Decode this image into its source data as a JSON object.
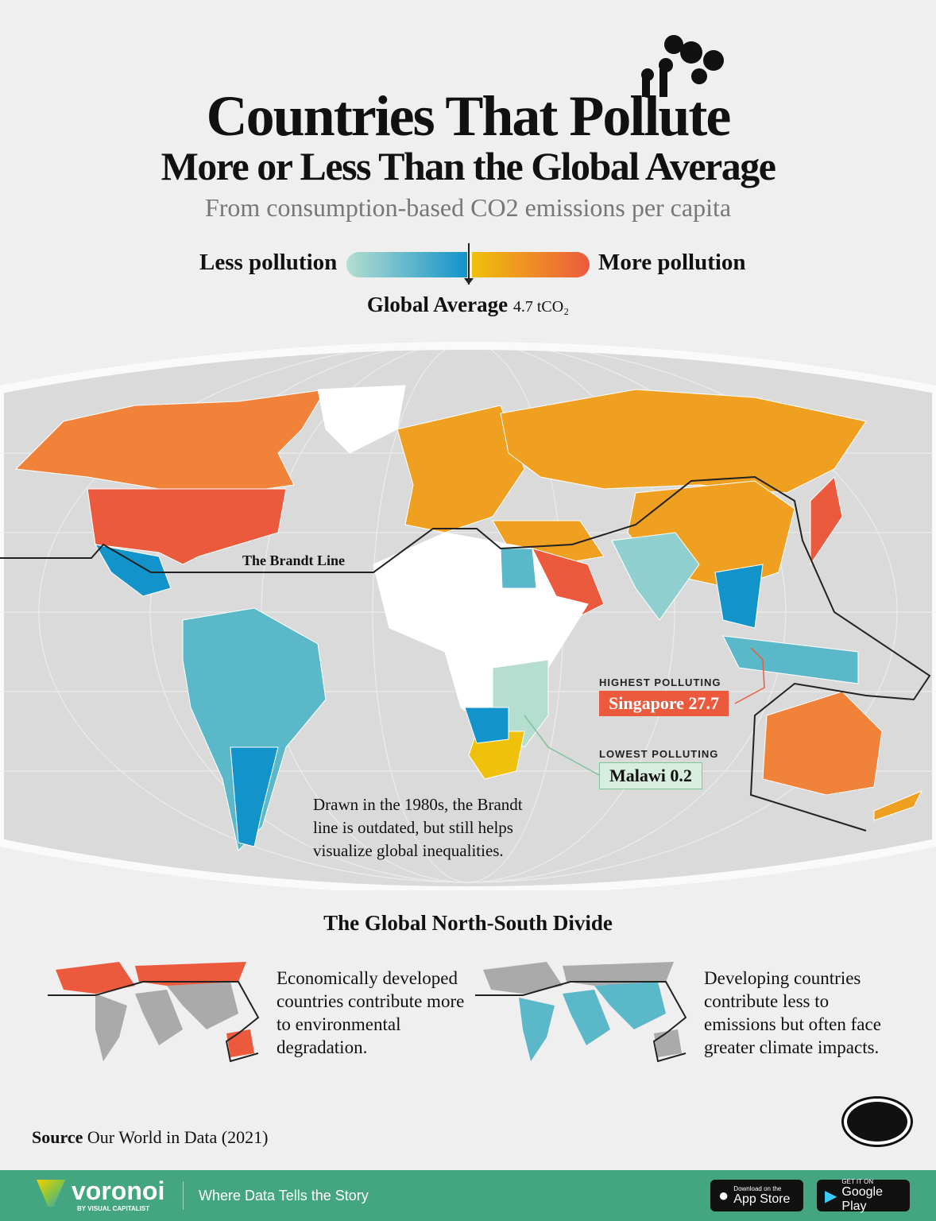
{
  "header": {
    "title_line1": "Countries That Pollute",
    "title_line2": "More or Less Than the Global Average",
    "subtitle": "From consumption-based CO2 emissions per capita"
  },
  "legend": {
    "less_label": "Less pollution",
    "more_label": "More pollution",
    "average_label": "Global Average",
    "average_value": "4.7 tCO₂",
    "less_colors": [
      "#b5ddd0",
      "#1293c9"
    ],
    "more_colors": [
      "#f0c10a",
      "#ec5a3e"
    ]
  },
  "map": {
    "brandt_line_label": "The Brandt Line",
    "highest": {
      "heading": "HIGHEST POLLUTING",
      "label": "Singapore 27.7",
      "country": "Singapore",
      "value": 27.7
    },
    "lowest": {
      "heading": "LOWEST POLLUTING",
      "label": "Malawi 0.2",
      "country": "Malawi",
      "value": 0.2
    },
    "note": "Drawn in the 1980s, the Brandt line is outdated, but still helps visualize global inequalities."
  },
  "divide": {
    "heading": "The Global North-South Divide",
    "north_text": "Economically developed countries contribute more to environmental degradation.",
    "south_text": "Developing countries contribute less to emissions but often face greater climate impacts.",
    "north_color": "#ec5a3e",
    "south_color": "#5ab8c9"
  },
  "source": {
    "label": "Source",
    "text": "Our World in Data (2021)"
  },
  "footer": {
    "brand": "voronoi",
    "brand_sub": "BY VISUAL CAPITALIST",
    "tagline": "Where Data Tells the Story",
    "appstore_small": "Download on the",
    "appstore": "App Store",
    "googleplay_small": "GET IT ON",
    "googleplay": "Google Play"
  }
}
